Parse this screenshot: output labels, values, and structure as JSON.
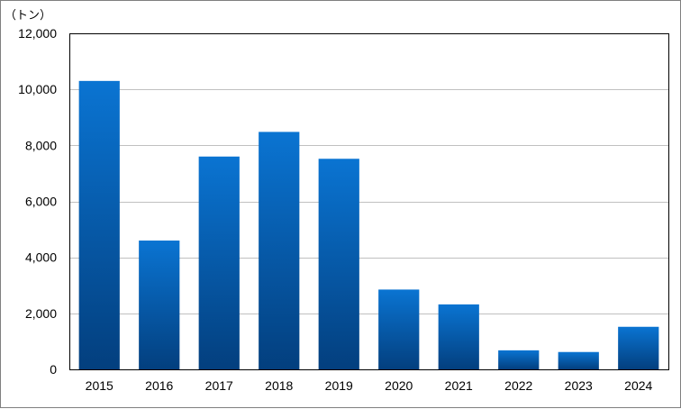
{
  "chart_data": {
    "type": "bar",
    "unit_label": "（トン）",
    "categories": [
      "2015",
      "2016",
      "2017",
      "2018",
      "2019",
      "2020",
      "2021",
      "2022",
      "2023",
      "2024"
    ],
    "values": [
      10300,
      4600,
      7600,
      8480,
      7520,
      2850,
      2320,
      680,
      620,
      1520
    ],
    "y_ticks": [
      "0",
      "2,000",
      "4,000",
      "6,000",
      "8,000",
      "10,000",
      "12,000"
    ],
    "ylim": [
      0,
      12000
    ],
    "grid": true,
    "bar_color_top": "#0a74d2",
    "bar_color_bottom": "#033f7e"
  }
}
